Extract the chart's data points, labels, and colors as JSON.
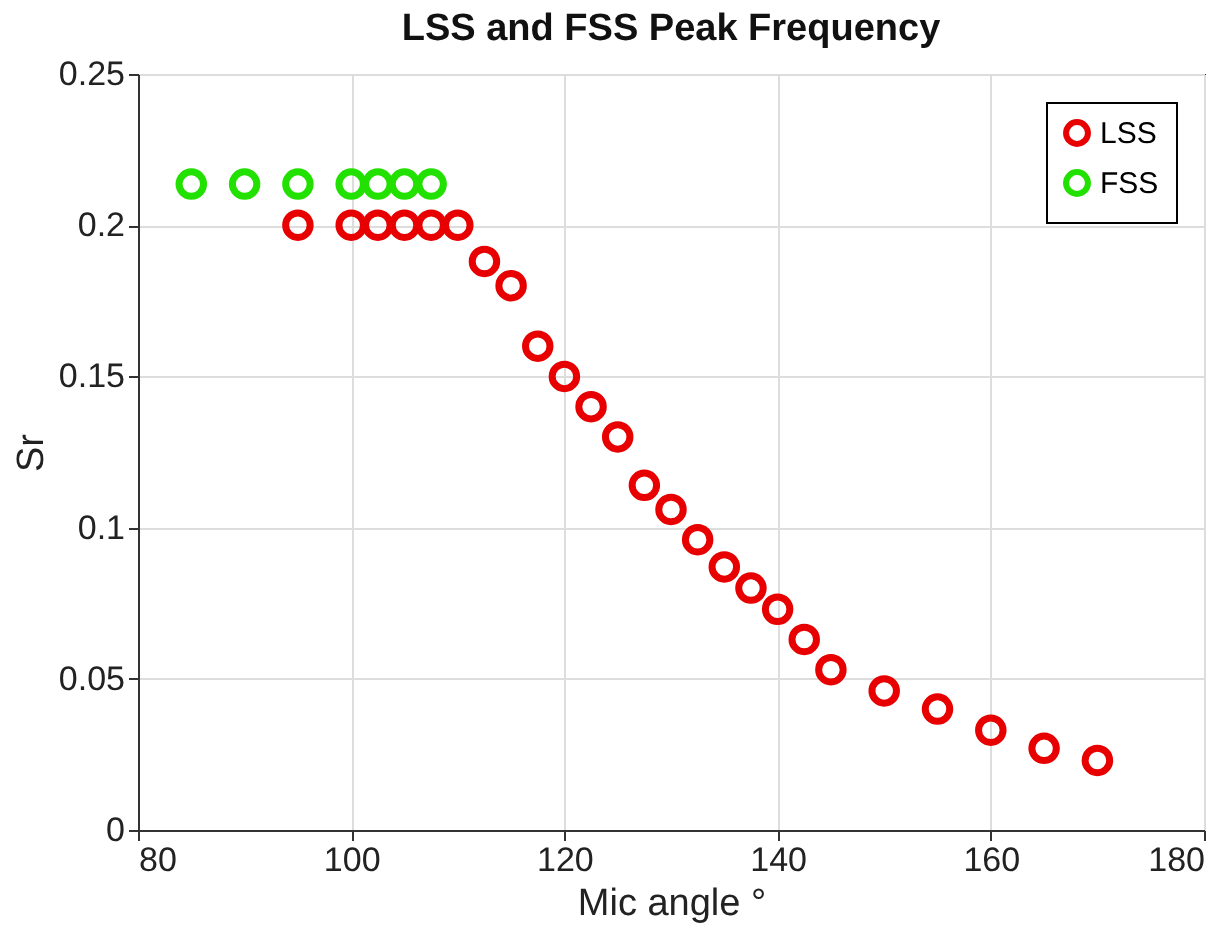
{
  "chart_data": {
    "type": "scatter",
    "title": "LSS and FSS Peak Frequency",
    "xlabel": "Mic angle °",
    "ylabel": "Sr",
    "series": [
      {
        "name": "LSS",
        "color": "#e80000",
        "x": [
          95,
          100,
          102.5,
          105,
          107.5,
          110,
          112.5,
          115,
          117.5,
          120,
          122.5,
          125,
          127.5,
          130,
          132.5,
          135,
          137.5,
          140,
          142.5,
          145,
          150,
          155,
          160,
          165,
          170
        ],
        "values": [
          0.2,
          0.2,
          0.2,
          0.2,
          0.2,
          0.2,
          0.188,
          0.18,
          0.16,
          0.15,
          0.14,
          0.13,
          0.114,
          0.106,
          0.096,
          0.087,
          0.08,
          0.073,
          0.063,
          0.053,
          0.046,
          0.04,
          0.033,
          0.027,
          0.023
        ]
      },
      {
        "name": "FSS",
        "color": "#22e000",
        "x": [
          85,
          90,
          95,
          100,
          102.5,
          105,
          107.5
        ],
        "values": [
          0.2136,
          0.2136,
          0.2136,
          0.2136,
          0.2136,
          0.2136,
          0.2136
        ]
      }
    ],
    "xlim": [
      80,
      180
    ],
    "xticks": [
      80,
      100,
      120,
      140,
      160,
      180
    ],
    "ylim": [
      0,
      0.25
    ],
    "yticks": [
      0,
      0.05,
      0.1,
      0.15,
      0.2,
      0.25
    ],
    "grid": true,
    "legend": "top right",
    "marker": "circle"
  }
}
